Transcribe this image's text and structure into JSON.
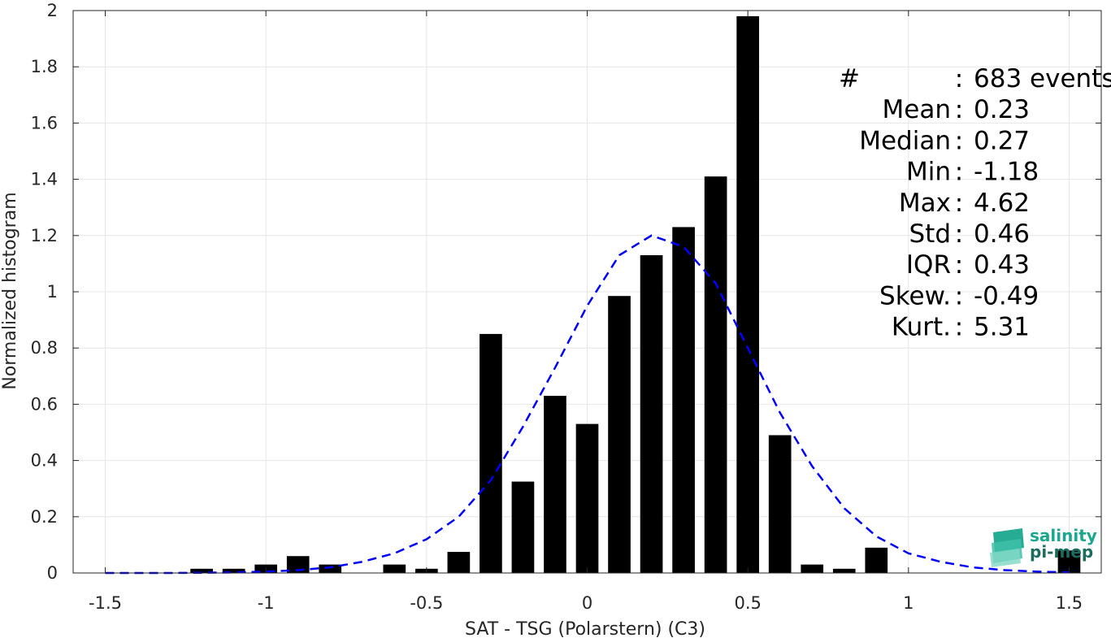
{
  "chart_data": {
    "type": "bar",
    "xlabel": "SAT - TSG (Polarstern) (C3)",
    "ylabel": "Normalized histogram",
    "xlim": [
      -1.6,
      1.6
    ],
    "ylim": [
      0,
      2
    ],
    "grid": true,
    "xticks": [
      -1.5,
      -1,
      -0.5,
      0,
      0.5,
      1,
      1.5
    ],
    "xtick_labels": [
      "-1.5",
      "-1",
      "-0.5",
      "0",
      "0.5",
      "1",
      "1.5"
    ],
    "yticks": [
      0,
      0.2,
      0.4,
      0.6,
      0.8,
      1,
      1.2,
      1.4,
      1.6,
      1.8,
      2
    ],
    "ytick_labels": [
      "0",
      "0.2",
      "0.4",
      "0.6",
      "0.8",
      "1",
      "1.2",
      "1.4",
      "1.6",
      "1.8",
      "2"
    ],
    "bar_width": 0.07,
    "bars": {
      "x": [
        -1.2,
        -1.1,
        -1.0,
        -0.9,
        -0.8,
        -0.6,
        -0.5,
        -0.4,
        -0.3,
        -0.2,
        -0.1,
        0.0,
        0.1,
        0.2,
        0.3,
        0.4,
        0.5,
        0.6,
        0.7,
        0.8,
        0.9,
        1.5
      ],
      "values": [
        0.015,
        0.015,
        0.03,
        0.06,
        0.03,
        0.03,
        0.015,
        0.075,
        0.85,
        0.325,
        0.63,
        0.53,
        0.985,
        1.13,
        1.23,
        1.41,
        1.98,
        0.49,
        0.03,
        0.015,
        0.09,
        0.08
      ],
      "color": "#000000"
    },
    "fit_curve": {
      "style": "dashed",
      "color": "#0000ff",
      "x": [
        -1.5,
        -1.4,
        -1.3,
        -1.2,
        -1.1,
        -1.0,
        -0.9,
        -0.8,
        -0.7,
        -0.6,
        -0.5,
        -0.4,
        -0.3,
        -0.2,
        -0.1,
        0.0,
        0.1,
        0.2,
        0.3,
        0.4,
        0.5,
        0.6,
        0.7,
        0.8,
        0.9,
        1.0,
        1.1,
        1.2,
        1.3,
        1.4,
        1.5
      ],
      "y": [
        0.0,
        0.0,
        0.0,
        0.001,
        0.002,
        0.005,
        0.01,
        0.02,
        0.04,
        0.07,
        0.12,
        0.2,
        0.33,
        0.52,
        0.73,
        0.95,
        1.13,
        1.2,
        1.16,
        1.03,
        0.8,
        0.57,
        0.38,
        0.23,
        0.13,
        0.07,
        0.04,
        0.02,
        0.01,
        0.005,
        0.002
      ]
    }
  },
  "stats": [
    {
      "label": "#",
      "sep": ":",
      "value": "683 events"
    },
    {
      "label": "Mean",
      "sep": ":",
      "value": "0.23"
    },
    {
      "label": "Median",
      "sep": ":",
      "value": "0.27"
    },
    {
      "label": "Min",
      "sep": ":",
      "value": "-1.18"
    },
    {
      "label": "Max",
      "sep": ":",
      "value": "4.62"
    },
    {
      "label": "Std",
      "sep": ":",
      "value": "0.46"
    },
    {
      "label": "IQR",
      "sep": ":",
      "value": "0.43"
    },
    {
      "label": "Skew.",
      "sep": ":",
      "value": "-0.49"
    },
    {
      "label": "Kurt.",
      "sep": ":",
      "value": "5.31"
    }
  ],
  "logo": {
    "line1": "salinity",
    "line2": "pi-mep",
    "color_teal": "#1aa68f",
    "color_dark": "#1b6b5e"
  },
  "colors": {
    "grid": "#e6e6e6",
    "axis": "#262626"
  }
}
